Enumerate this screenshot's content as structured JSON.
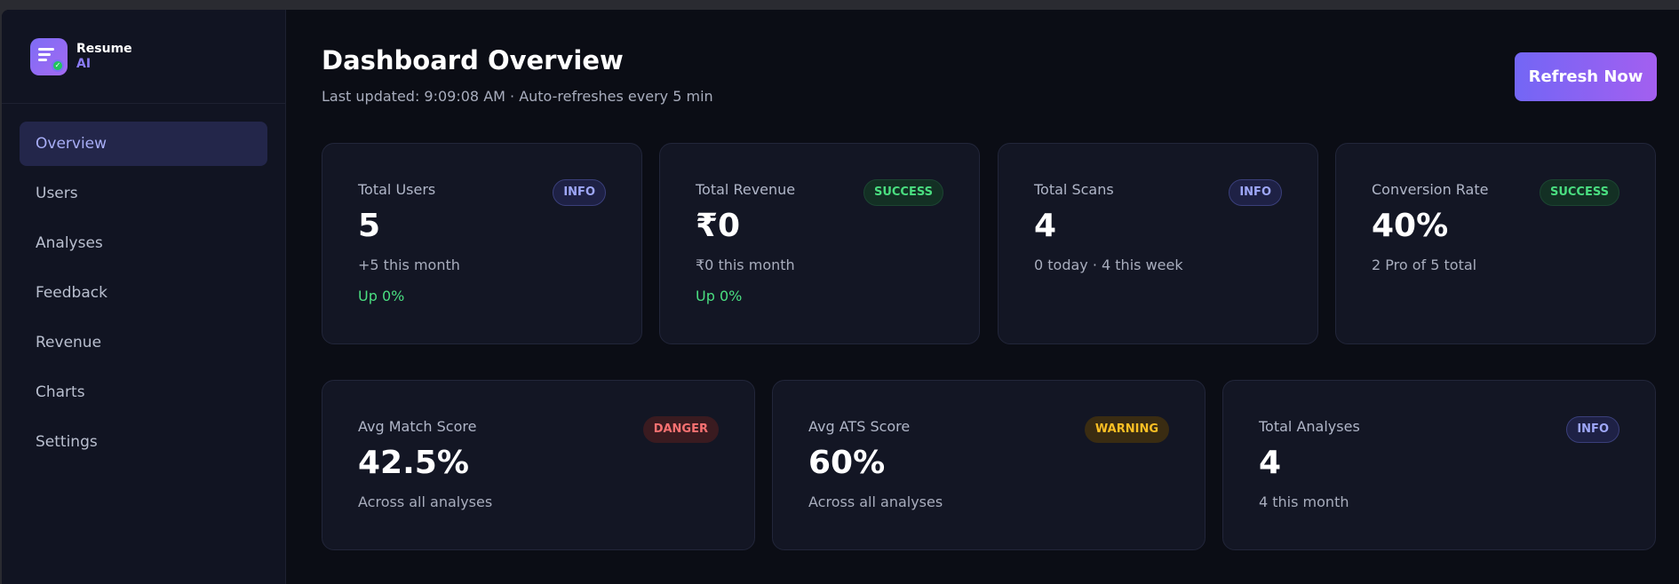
{
  "brand": {
    "line1": "Resume",
    "line2": "AI",
    "logo_icon": "document-check-icon"
  },
  "nav": [
    {
      "label": "Overview",
      "active": true
    },
    {
      "label": "Users",
      "active": false
    },
    {
      "label": "Analyses",
      "active": false
    },
    {
      "label": "Feedback",
      "active": false
    },
    {
      "label": "Revenue",
      "active": false
    },
    {
      "label": "Charts",
      "active": false
    },
    {
      "label": "Settings",
      "active": false
    }
  ],
  "header": {
    "title": "Dashboard Overview",
    "subtitle": "Last updated: 9:09:08 AM · Auto-refreshes every 5 min",
    "refresh_label": "Refresh Now"
  },
  "stats_row1": [
    {
      "label": "Total Users",
      "badge": "INFO",
      "value": "5",
      "sub": "+5 this month",
      "trend": "Up 0%"
    },
    {
      "label": "Total Revenue",
      "badge": "SUCCESS",
      "value": "₹0",
      "sub": "₹0 this month",
      "trend": "Up 0%"
    },
    {
      "label": "Total Scans",
      "badge": "INFO",
      "value": "4",
      "sub": "0 today · 4 this week",
      "trend": ""
    },
    {
      "label": "Conversion Rate",
      "badge": "SUCCESS",
      "value": "40%",
      "sub": "2 Pro of 5 total",
      "trend": ""
    }
  ],
  "stats_row2": [
    {
      "label": "Avg Match Score",
      "badge": "DANGER",
      "value": "42.5%",
      "sub": "Across all analyses"
    },
    {
      "label": "Avg ATS Score",
      "badge": "WARNING",
      "value": "60%",
      "sub": "Across all analyses"
    },
    {
      "label": "Total Analyses",
      "badge": "INFO",
      "value": "4",
      "sub": "4 this month"
    }
  ],
  "colors": {
    "background": "#0b0d15",
    "sidebar": "#111422",
    "accent": "#7366f5",
    "success": "#4ade80",
    "danger": "#f87171",
    "warning": "#fbbf24"
  }
}
